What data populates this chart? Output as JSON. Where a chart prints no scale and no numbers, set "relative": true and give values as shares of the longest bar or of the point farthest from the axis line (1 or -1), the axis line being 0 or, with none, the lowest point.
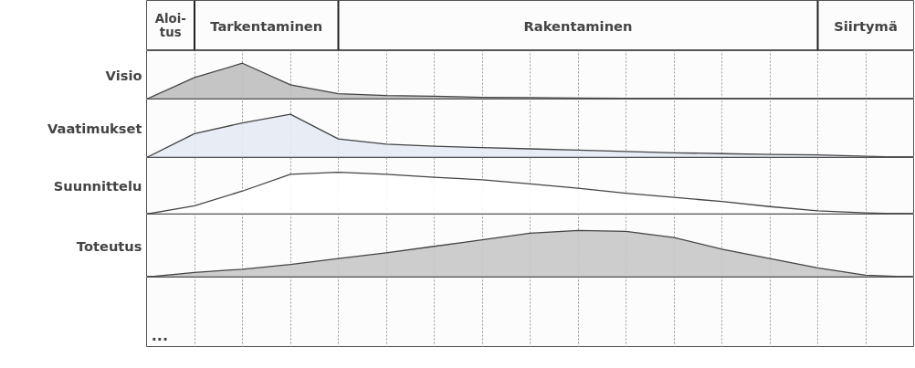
{
  "chart_data": [
    {
      "type": "other",
      "annotations": [
        "Aloi-\ntus",
        "Tarkentaminen",
        "Rakentaminen",
        "Siirtymä"
      ]
    },
    {
      "type": "area",
      "relative": true,
      "ylabel": "Visio",
      "grid": "x",
      "categories": [
        null,
        null,
        null,
        null,
        null,
        null,
        null,
        null,
        null,
        null,
        null,
        null,
        null,
        null,
        null,
        null,
        null
      ],
      "series": [
        {
          "color": "#bfbfbf",
          "values": [
            0,
            0.6,
            1.0,
            0.4,
            0.15,
            0.1,
            0.08,
            0.05,
            0.04,
            0.03,
            0.02,
            0.02,
            0.01,
            0.01,
            0.01,
            0,
            0
          ]
        }
      ]
    },
    {
      "type": "area",
      "relative": true,
      "ylabel": "Vaatimukset",
      "grid": "x",
      "categories": [
        null,
        null,
        null,
        null,
        null,
        null,
        null,
        null,
        null,
        null,
        null,
        null,
        null,
        null,
        null,
        null,
        null
      ],
      "series": [
        {
          "color": "#e4eaf4",
          "values": [
            0,
            0.55,
            0.8,
            1.0,
            0.43,
            0.31,
            0.26,
            0.23,
            0.2,
            0.17,
            0.14,
            0.11,
            0.09,
            0.07,
            0.06,
            0.03,
            0
          ]
        }
      ]
    },
    {
      "type": "area",
      "relative": true,
      "ylabel": "Suunnittelu",
      "grid": "x",
      "categories": [
        null,
        null,
        null,
        null,
        null,
        null,
        null,
        null,
        null,
        null,
        null,
        null,
        null,
        null,
        null,
        null,
        null
      ],
      "series": [
        {
          "color": "#ffffff",
          "values": [
            0,
            0.2,
            0.55,
            0.95,
            1.0,
            0.95,
            0.88,
            0.82,
            0.72,
            0.62,
            0.5,
            0.4,
            0.3,
            0.18,
            0.08,
            0.03,
            0
          ]
        }
      ]
    },
    {
      "type": "area",
      "relative": true,
      "ylabel": "Toteutus",
      "grid": "x",
      "categories": [
        null,
        null,
        null,
        null,
        null,
        null,
        null,
        null,
        null,
        null,
        null,
        null,
        null,
        null,
        null,
        null,
        null
      ],
      "series": [
        {
          "color": "#c8c8c8",
          "values": [
            0,
            0.1,
            0.17,
            0.27,
            0.4,
            0.52,
            0.66,
            0.8,
            0.94,
            1.0,
            0.98,
            0.85,
            0.6,
            0.4,
            0.2,
            0.04,
            0
          ]
        }
      ]
    },
    {
      "type": "other",
      "categories": [
        null,
        null,
        null,
        null,
        null,
        null,
        null,
        null,
        null,
        null,
        null,
        null,
        null,
        null,
        null,
        null,
        null
      ],
      "annotations": [
        "..."
      ]
    }
  ]
}
